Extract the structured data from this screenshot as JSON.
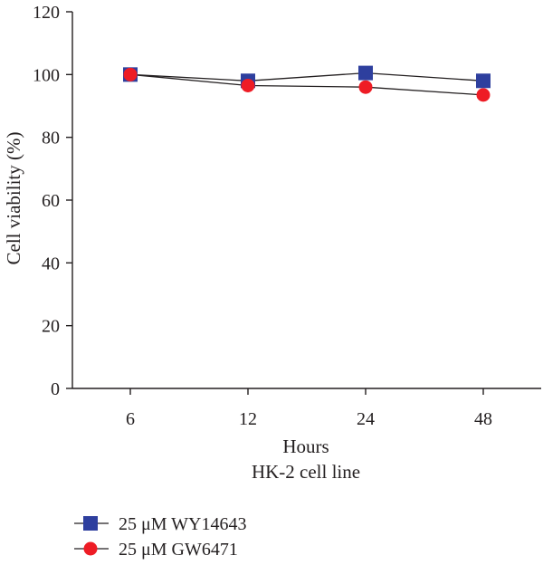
{
  "chart_data": {
    "type": "line",
    "title": "",
    "xlabel": "Hours",
    "subtitle": "HK-2 cell line",
    "ylabel": "Cell viability (%)",
    "categories": [
      "6",
      "12",
      "24",
      "48"
    ],
    "ylim": [
      0,
      120
    ],
    "yticks": [
      0,
      20,
      40,
      60,
      80,
      100,
      120
    ],
    "grid": false,
    "legend_position": "bottom-left",
    "series": [
      {
        "name": "25 μM WY14643",
        "marker": "square",
        "color": "#2e3f9e",
        "values": [
          100,
          98,
          100.5,
          98
        ]
      },
      {
        "name": "25 μM GW6471",
        "marker": "circle",
        "color": "#ee1c25",
        "values": [
          100,
          96.5,
          96,
          93.5
        ]
      }
    ]
  }
}
